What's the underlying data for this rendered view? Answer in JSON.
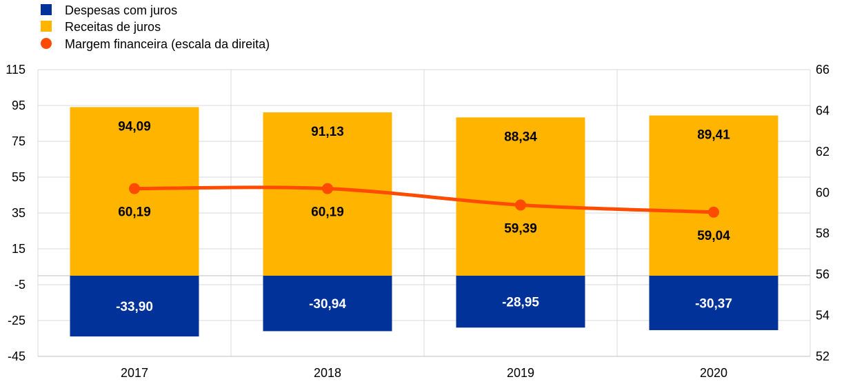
{
  "chart_data": {
    "type": "bar",
    "stacked": true,
    "categories": [
      "2017",
      "2018",
      "2019",
      "2020"
    ],
    "series": [
      {
        "name": "Despesas com juros",
        "type": "bar",
        "axis": "left",
        "color": "#003299",
        "values": [
          -33.9,
          -30.94,
          -28.95,
          -30.37
        ],
        "labels": [
          "-33,90",
          "-30,94",
          "-28,95",
          "-30,37"
        ]
      },
      {
        "name": "Receitas de juros",
        "type": "bar",
        "axis": "left",
        "color": "#FFB400",
        "values": [
          94.09,
          91.13,
          88.34,
          89.41
        ],
        "labels": [
          "94,09",
          "91,13",
          "88,34",
          "89,41"
        ]
      },
      {
        "name": "Margem financeira (escala da direita)",
        "type": "line",
        "axis": "right",
        "color": "#FF4B00",
        "values": [
          60.19,
          60.19,
          59.39,
          59.04
        ],
        "labels": [
          "60,19",
          "60,19",
          "59,39",
          "59,04"
        ]
      }
    ],
    "y_left": {
      "min": -45,
      "max": 115,
      "ticks": [
        "115",
        "95",
        "75",
        "55",
        "35",
        "15",
        "-5",
        "-25",
        "-45"
      ]
    },
    "y_right": {
      "min": 52,
      "max": 66,
      "ticks": [
        "66",
        "64",
        "62",
        "60",
        "58",
        "56",
        "54",
        "52"
      ]
    },
    "grid": true,
    "legend": "top-left",
    "title": "",
    "xlabel": "",
    "ylabel": ""
  }
}
